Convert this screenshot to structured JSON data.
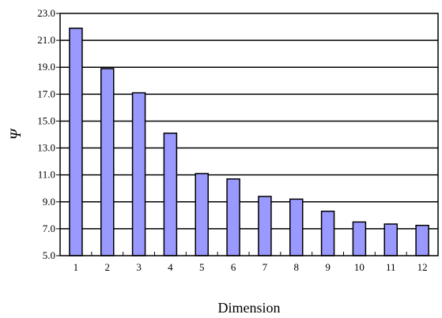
{
  "chart_data": {
    "type": "bar",
    "categories": [
      "1",
      "2",
      "3",
      "4",
      "5",
      "6",
      "7",
      "8",
      "9",
      "10",
      "11",
      "12"
    ],
    "values": [
      21.9,
      18.9,
      17.1,
      14.1,
      11.1,
      10.7,
      9.4,
      9.2,
      8.3,
      7.5,
      7.35,
      7.25
    ],
    "xlabel": "Dimension",
    "ylabel": "Ψ",
    "ylim": [
      5.0,
      23.0
    ],
    "yticks": [
      "5.0",
      "7.0",
      "9.0",
      "11.0",
      "13.0",
      "15.0",
      "17.0",
      "19.0",
      "21.0",
      "23.0"
    ],
    "grid": true,
    "bar_color": "#9999ff",
    "edge_color": "#000000"
  }
}
